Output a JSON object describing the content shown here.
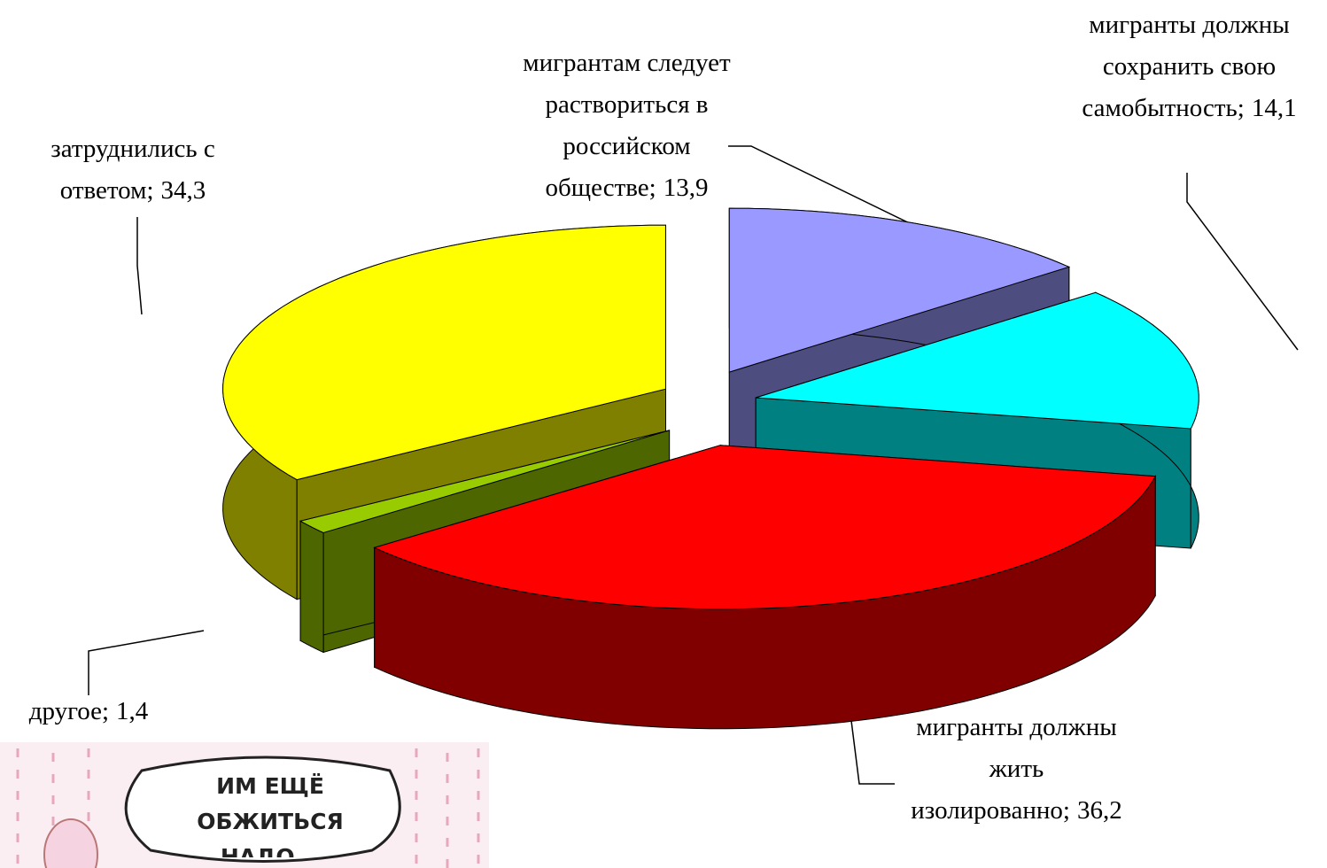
{
  "chart_data": {
    "type": "pie3d",
    "categories": [
      "мигрантам следует раствориться в российском обществе;",
      "мигранты должны сохранить свою самобытность;",
      "мигранты должны жить изолированно;",
      "другое;",
      "затруднились с ответом;"
    ],
    "values": [
      13.9,
      14.1,
      36.2,
      1.4,
      34.3
    ],
    "value_labels": [
      "13,9",
      "14,1",
      "36,2",
      "1,4",
      "34,3"
    ],
    "colors": [
      "#9999ff",
      "#00ffff",
      "#ff0000",
      "#99cc00",
      "#ffff00"
    ]
  },
  "annotation": "ИМ ЕЩЁ ОБЖИТЬСЯ НАДО..."
}
